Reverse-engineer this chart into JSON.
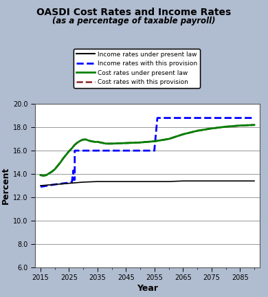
{
  "title_line1": "OASDI Cost Rates and Income Rates",
  "title_line2": "(as a percentage of taxable payroll)",
  "xlabel": "Year",
  "ylabel": "Percent",
  "ylim": [
    6.0,
    20.0
  ],
  "xlim": [
    2013,
    2092
  ],
  "yticks": [
    6.0,
    8.0,
    10.0,
    12.0,
    14.0,
    16.0,
    18.0,
    20.0
  ],
  "xticks": [
    2015,
    2025,
    2035,
    2045,
    2055,
    2065,
    2075,
    2085
  ],
  "background_color": "#b0bcd0",
  "plot_bg_color": "#ffffff",
  "legend_labels": [
    "Income rates under present law",
    "Income rates with this provision",
    "Cost rates under present law",
    "Cost rates with this provision"
  ],
  "income_present_law": {
    "years": [
      2015,
      2020,
      2025,
      2030,
      2035,
      2040,
      2045,
      2050,
      2055,
      2060,
      2065,
      2070,
      2075,
      2080,
      2085,
      2090
    ],
    "values": [
      13.0,
      13.1,
      13.2,
      13.3,
      13.35,
      13.35,
      13.35,
      13.35,
      13.35,
      13.35,
      13.4,
      13.4,
      13.4,
      13.4,
      13.4,
      13.4
    ],
    "color": "#000000",
    "linestyle": "-",
    "linewidth": 1.2
  },
  "income_provision": {
    "years": [
      2015,
      2020,
      2025,
      2026,
      2026.5,
      2026.5,
      2027,
      2027,
      2055,
      2055,
      2056,
      2090
    ],
    "values": [
      12.9,
      13.1,
      13.25,
      13.3,
      14.3,
      13.5,
      13.5,
      16.0,
      16.0,
      16.2,
      18.8,
      18.8
    ],
    "color": "#0000ff",
    "linestyle": "--",
    "linewidth": 2.0
  },
  "cost_present_law": {
    "years": [
      2015,
      2016,
      2017,
      2018,
      2019,
      2020,
      2021,
      2022,
      2023,
      2024,
      2025,
      2026,
      2027,
      2028,
      2029,
      2030,
      2031,
      2032,
      2033,
      2034,
      2035,
      2036,
      2037,
      2038,
      2039,
      2040,
      2045,
      2050,
      2055,
      2060,
      2065,
      2070,
      2075,
      2080,
      2085,
      2090
    ],
    "values": [
      13.9,
      13.85,
      13.9,
      14.05,
      14.2,
      14.4,
      14.7,
      15.0,
      15.35,
      15.65,
      15.95,
      16.2,
      16.5,
      16.7,
      16.85,
      16.95,
      16.95,
      16.85,
      16.8,
      16.75,
      16.75,
      16.7,
      16.65,
      16.6,
      16.6,
      16.6,
      16.65,
      16.7,
      16.8,
      17.0,
      17.4,
      17.7,
      17.9,
      18.05,
      18.15,
      18.2
    ],
    "color": "#008000",
    "linestyle": "-",
    "linewidth": 2.0
  },
  "cost_provision": {
    "years": [
      2015,
      2016,
      2017,
      2018,
      2019,
      2020,
      2021,
      2022,
      2023,
      2024,
      2025,
      2026,
      2027,
      2028,
      2029,
      2030,
      2031,
      2032,
      2033,
      2034,
      2035,
      2036,
      2037,
      2038,
      2039,
      2040,
      2045,
      2050,
      2055,
      2060,
      2065,
      2070,
      2075,
      2080,
      2085,
      2090
    ],
    "values": [
      13.9,
      13.85,
      13.9,
      14.05,
      14.2,
      14.4,
      14.7,
      15.0,
      15.35,
      15.65,
      15.95,
      16.2,
      16.5,
      16.7,
      16.85,
      16.95,
      16.95,
      16.85,
      16.8,
      16.75,
      16.75,
      16.7,
      16.65,
      16.6,
      16.6,
      16.6,
      16.65,
      16.7,
      16.8,
      17.0,
      17.4,
      17.7,
      17.9,
      18.05,
      18.15,
      18.2
    ],
    "color": "#8b2020",
    "linestyle": "--",
    "linewidth": 1.8
  }
}
